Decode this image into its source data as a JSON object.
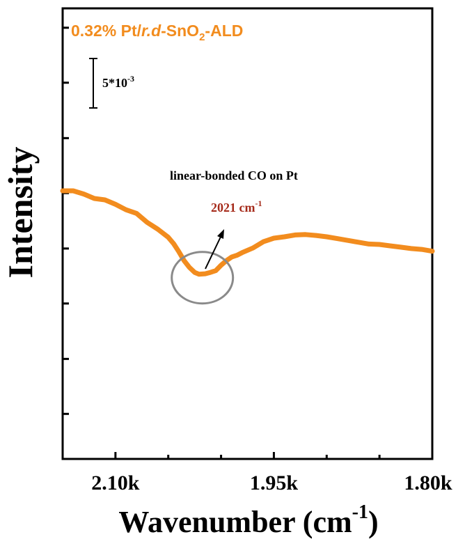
{
  "chart_data": {
    "type": "line",
    "xlabel": "Wavenumber (cm",
    "xlabel_sup": "-1",
    "xlabel_end": ")",
    "ylabel": "Intensity",
    "x_reversed": true,
    "xlim": [
      2150,
      1800
    ],
    "x_ticks": [
      2100,
      1950,
      1800
    ],
    "x_tick_labels": [
      "2.10k",
      "1.95k",
      "1.80k"
    ],
    "x_minor_ticks": [
      2050,
      2000,
      1900,
      1850
    ],
    "ylim": [
      0,
      1
    ],
    "y_ticks": [
      0.1,
      0.222,
      0.345,
      0.467,
      0.59,
      0.712,
      0.835,
      0.957
    ],
    "series": [
      {
        "name": "0.32% Pt/r.d-SnO2-ALD",
        "color": "#f28c1e",
        "x": [
          2150,
          2140,
          2130,
          2120,
          2110,
          2100,
          2090,
          2080,
          2070,
          2060,
          2050,
          2045,
          2040,
          2035,
          2030,
          2025,
          2021,
          2015,
          2010,
          2005,
          2000,
          1995,
          1990,
          1985,
          1980,
          1970,
          1960,
          1950,
          1940,
          1930,
          1920,
          1910,
          1900,
          1890,
          1880,
          1870,
          1860,
          1850,
          1840,
          1830,
          1820,
          1810,
          1800
        ],
        "y": [
          0.595,
          0.595,
          0.588,
          0.578,
          0.575,
          0.565,
          0.553,
          0.545,
          0.525,
          0.51,
          0.492,
          0.478,
          0.46,
          0.44,
          0.425,
          0.414,
          0.41,
          0.411,
          0.414,
          0.418,
          0.43,
          0.44,
          0.448,
          0.452,
          0.458,
          0.468,
          0.482,
          0.49,
          0.493,
          0.497,
          0.498,
          0.496,
          0.493,
          0.489,
          0.485,
          0.481,
          0.477,
          0.476,
          0.473,
          0.47,
          0.467,
          0.465,
          0.461
        ]
      }
    ]
  },
  "legend": {
    "prefix": "0.32% Pt/",
    "italic": "r.d",
    "mid": "-SnO",
    "sub": "2",
    "suffix": "-ALD",
    "color": "#f28c1e"
  },
  "scale_bar": {
    "label": "5*10",
    "label_sup": "-3",
    "value": 0.005
  },
  "annotation": {
    "title": "linear-bonded CO on Pt",
    "peak_label": "2021 cm",
    "peak_sup": "-1",
    "peak_x": 2021,
    "peak_color": "#a52a1a",
    "circle_color": "#8a8a8a"
  }
}
